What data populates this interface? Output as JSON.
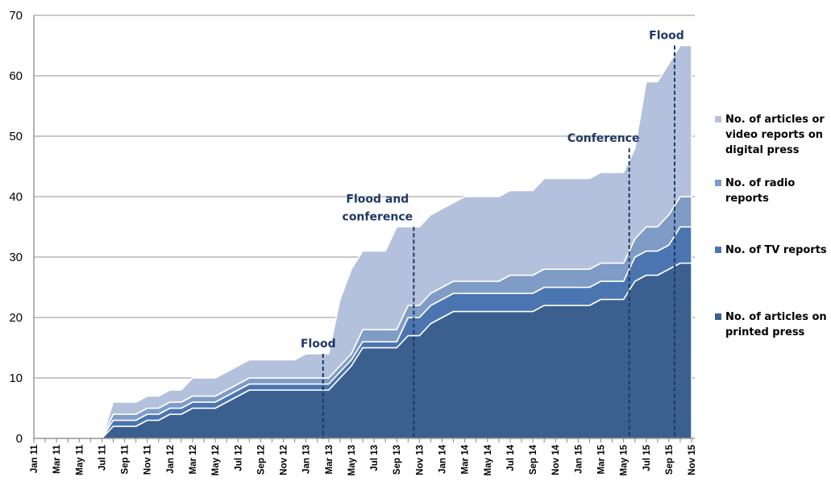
{
  "chart_data": {
    "type": "area",
    "stacked": true,
    "categories": [
      "Jan 11",
      "Feb 11",
      "Mar 11",
      "Apr 11",
      "May 11",
      "Jun 11",
      "Jul 11",
      "Aug 11",
      "Sep 11",
      "Oct 11",
      "Nov 11",
      "Dec 11",
      "Jan 12",
      "Feb 12",
      "Mar 12",
      "Apr 12",
      "May 12",
      "Jun 12",
      "Jul 12",
      "Aug 12",
      "Sep 12",
      "Oct 12",
      "Nov 12",
      "Dec 12",
      "Jan 13",
      "Feb 13",
      "Mar 13",
      "Apr 13",
      "May 13",
      "Jun 13",
      "Jul 13",
      "Aug 13",
      "Sep 13",
      "Oct 13",
      "Nov 13",
      "Dec 13",
      "Jan 14",
      "Feb 14",
      "Mar 14",
      "Apr 14",
      "May 14",
      "Jun 14",
      "Jul 14",
      "Aug 14",
      "Sep 14",
      "Oct 14",
      "Nov 14",
      "Dec 14",
      "Jan 15",
      "Feb 15",
      "Mar 15",
      "Apr 15",
      "May 15",
      "Jun 15",
      "Jul 15",
      "Aug 15",
      "Sep 15",
      "Oct 15",
      "Nov 15"
    ],
    "xtick_labels": [
      "Jan 11",
      "Mar 11",
      "May 11",
      "Jul 11",
      "Sep 11",
      "Nov 11",
      "Jan 12",
      "Mar 12",
      "May 12",
      "Jul 12",
      "Sep 12",
      "Nov 12",
      "Jan 13",
      "Mar 13",
      "May 13",
      "Jul 13",
      "Sep 13",
      "Nov 13",
      "Jan 14",
      "Mar 14",
      "May 14",
      "Jul 14",
      "Sep 14",
      "Nov 14",
      "Jan 15",
      "Mar 15",
      "May 15",
      "Jul 15",
      "Sep 15",
      "Nov 15"
    ],
    "series": [
      {
        "name": "No. of articles on printed press",
        "color": "#3b5f8f",
        "values": [
          0,
          0,
          0,
          0,
          0,
          0,
          0,
          2,
          2,
          2,
          3,
          3,
          4,
          4,
          5,
          5,
          5,
          6,
          7,
          8,
          8,
          8,
          8,
          8,
          8,
          8,
          8,
          10,
          12,
          15,
          15,
          15,
          15,
          17,
          17,
          19,
          20,
          21,
          21,
          21,
          21,
          21,
          21,
          21,
          21,
          22,
          22,
          22,
          22,
          22,
          23,
          23,
          23,
          26,
          27,
          27,
          28,
          29,
          29
        ]
      },
      {
        "name": "No. of  TV reports",
        "color": "#4a75b1",
        "values": [
          0,
          0,
          0,
          0,
          0,
          0,
          0,
          1,
          1,
          1,
          1,
          1,
          1,
          1,
          1,
          1,
          1,
          1,
          1,
          1,
          1,
          1,
          1,
          1,
          1,
          1,
          1,
          1,
          1,
          1,
          1,
          1,
          1,
          3,
          3,
          3,
          3,
          3,
          3,
          3,
          3,
          3,
          3,
          3,
          3,
          3,
          3,
          3,
          3,
          3,
          3,
          3,
          3,
          4,
          4,
          4,
          4,
          6,
          6
        ]
      },
      {
        "name": "No. of radio reports",
        "color": "#7f9cc7",
        "values": [
          0,
          0,
          0,
          0,
          0,
          0,
          0,
          1,
          1,
          1,
          1,
          1,
          1,
          1,
          1,
          1,
          1,
          1,
          1,
          1,
          1,
          1,
          1,
          1,
          1,
          1,
          1,
          1,
          1,
          2,
          2,
          2,
          2,
          2,
          2,
          2,
          2,
          2,
          2,
          2,
          2,
          2,
          3,
          3,
          3,
          3,
          3,
          3,
          3,
          3,
          3,
          3,
          3,
          3,
          4,
          4,
          5,
          5,
          5
        ]
      },
      {
        "name": "No. of articles or video reports on digital press",
        "color": "#b4c1dc",
        "values": [
          0,
          0,
          0,
          0,
          0,
          0,
          0,
          2,
          2,
          2,
          2,
          2,
          2,
          2,
          3,
          3,
          3,
          3,
          3,
          3,
          3,
          3,
          3,
          3,
          4,
          4,
          4,
          11,
          14,
          13,
          13,
          13,
          17,
          13,
          13,
          13,
          13,
          13,
          14,
          14,
          14,
          14,
          14,
          14,
          14,
          15,
          15,
          15,
          15,
          15,
          15,
          15,
          15,
          15,
          24,
          24,
          25,
          25,
          25
        ]
      }
    ],
    "legend_lines": [
      [
        "No. of articles or",
        "video reports on",
        "digital press"
      ],
      [
        "No. of radio",
        "reports"
      ],
      [
        "No. of  TV reports"
      ],
      [
        "No. of articles on",
        "printed press"
      ]
    ],
    "legend_position": "right",
    "annotations": [
      {
        "lines": [
          "Flood"
        ],
        "x": "Feb 13",
        "value": 14
      },
      {
        "lines": [
          "Flood and",
          "conference"
        ],
        "x": "Oct 13",
        "value": 35
      },
      {
        "lines": [
          "Conference"
        ],
        "x": "May 15",
        "value": 48
      },
      {
        "lines": [
          "Flood"
        ],
        "x": "Sep 15",
        "value": 65
      }
    ],
    "ylim": [
      0,
      70
    ],
    "yticks": [
      0,
      10,
      20,
      30,
      40,
      50,
      60,
      70
    ],
    "title": "",
    "xlabel": "",
    "ylabel": "",
    "grid": true
  }
}
